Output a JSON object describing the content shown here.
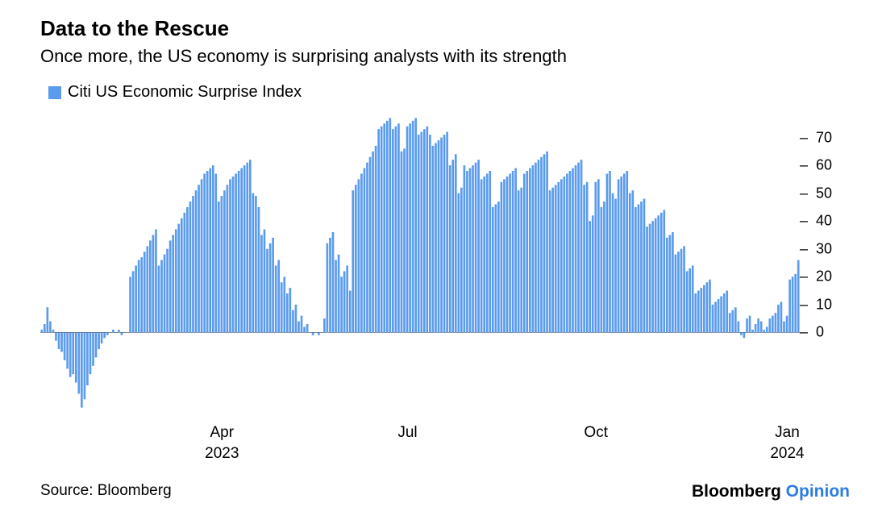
{
  "title": "Data to the Rescue",
  "subtitle": "Once more, the US economy is surprising analysts with its strength",
  "legend": {
    "label": "Citi US Economic Surprise Index",
    "swatch_color": "#5a9bed"
  },
  "source": "Source: Bloomberg",
  "brand": {
    "main": "Bloomberg",
    "opinion": "Opinion",
    "opinion_color": "#2a7de1"
  },
  "chart": {
    "type": "bar",
    "bar_color": "#5a9bed",
    "background_color": "#ffffff",
    "ylim": [
      -30,
      80
    ],
    "yticks": [
      0,
      10,
      20,
      30,
      40,
      50,
      60,
      70
    ],
    "zero_line_color": "#000000",
    "bar_gap_ratio": 0.25,
    "xticks": [
      {
        "idx": 49,
        "label_top": "Apr",
        "label_bottom": "2023"
      },
      {
        "idx": 114,
        "label_top": "Jul",
        "label_bottom": ""
      },
      {
        "idx": 180,
        "label_top": "Oct",
        "label_bottom": ""
      },
      {
        "idx": 247,
        "label_top": "Jan",
        "label_bottom": "2024"
      }
    ],
    "values": [
      1,
      3,
      9,
      4,
      1,
      -3,
      -6,
      -7,
      -10,
      -13,
      -16,
      -15,
      -18,
      -22,
      -27,
      -24,
      -19,
      -15,
      -12,
      -9,
      -6,
      -4,
      -2,
      -1,
      0,
      1,
      0,
      1,
      -1,
      0,
      0,
      20,
      22,
      24,
      26,
      27,
      29,
      31,
      33,
      35,
      37,
      24,
      26,
      28,
      30,
      33,
      35,
      37,
      39,
      41,
      43,
      45,
      47,
      49,
      51,
      53,
      55,
      57,
      58,
      59,
      60,
      57,
      47,
      49,
      51,
      53,
      55,
      56,
      57,
      58,
      59,
      60,
      61,
      62,
      50,
      49,
      45,
      35,
      37,
      30,
      32,
      34,
      24,
      26,
      18,
      20,
      14,
      16,
      8,
      10,
      4,
      6,
      2,
      3,
      0,
      -1,
      0,
      -1,
      0,
      5,
      32,
      34,
      36,
      26,
      28,
      20,
      22,
      24,
      15,
      51,
      53,
      55,
      57,
      59,
      61,
      63,
      65,
      67,
      73,
      74,
      75,
      76,
      77,
      73,
      74,
      75,
      65,
      66,
      74,
      75,
      76,
      77,
      71,
      72,
      73,
      74,
      71,
      67,
      68,
      69,
      70,
      71,
      72,
      60,
      62,
      64,
      50,
      52,
      60,
      58,
      59,
      60,
      61,
      62,
      55,
      56,
      57,
      58,
      45,
      46,
      47,
      54,
      55,
      56,
      57,
      58,
      59,
      51,
      52,
      57,
      58,
      59,
      60,
      61,
      62,
      63,
      64,
      65,
      51,
      52,
      53,
      54,
      55,
      56,
      57,
      58,
      59,
      60,
      61,
      62,
      53,
      54,
      40,
      42,
      54,
      55,
      45,
      47,
      57,
      58,
      50,
      48,
      55,
      56,
      57,
      58,
      50,
      51,
      45,
      46,
      47,
      48,
      38,
      39,
      40,
      41,
      42,
      43,
      44,
      34,
      35,
      36,
      28,
      29,
      30,
      31,
      22,
      23,
      24,
      14,
      15,
      16,
      17,
      18,
      19,
      10,
      11,
      12,
      13,
      14,
      15,
      7,
      8,
      9,
      4,
      -1,
      -2,
      5,
      6,
      1,
      3,
      5,
      4,
      1,
      2,
      5,
      6,
      7,
      10,
      11,
      4,
      6,
      19,
      20,
      21,
      26
    ]
  }
}
